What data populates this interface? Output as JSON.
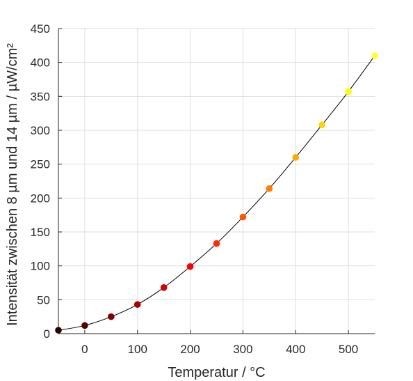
{
  "chart_data": {
    "type": "scatter",
    "xlabel": "Temperatur / °C",
    "ylabel": "Intensität zwischen 8 µm und 14 µm  / µW/cm²",
    "xlim": [
      -50,
      550
    ],
    "ylim": [
      0,
      450
    ],
    "xticks": [
      0,
      100,
      200,
      300,
      400,
      500
    ],
    "yticks": [
      0,
      50,
      100,
      150,
      200,
      250,
      300,
      350,
      400,
      450
    ],
    "grid": true,
    "legend": "none",
    "series": [
      {
        "style": "line",
        "color": "#000000",
        "x": [
          -50,
          0,
          50,
          100,
          150,
          200,
          250,
          300,
          350,
          400,
          450,
          500,
          550
        ],
        "y": [
          5,
          12,
          25,
          43,
          68,
          99,
          133,
          172,
          214,
          260,
          308,
          357,
          410
        ]
      },
      {
        "style": "markers",
        "x": [
          -50,
          0,
          50,
          100,
          150,
          200,
          250,
          300,
          350,
          400,
          450,
          500,
          550
        ],
        "y": [
          5,
          12,
          25,
          43,
          68,
          99,
          133,
          172,
          214,
          260,
          308,
          357,
          410
        ],
        "colors": [
          "#2a0000",
          "#550000",
          "#800000",
          "#aa0000",
          "#d40000",
          "#ff0000",
          "#ff2a00",
          "#ff5500",
          "#ff8000",
          "#ffaa00",
          "#ffd400",
          "#ffff00",
          "#ffff2a"
        ]
      }
    ]
  }
}
